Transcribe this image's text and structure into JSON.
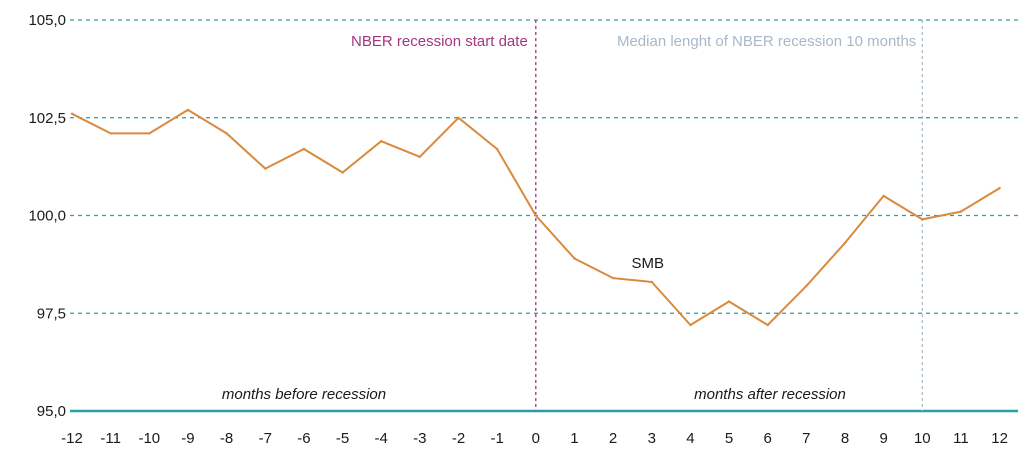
{
  "chart_data": {
    "type": "line",
    "x": [
      -12,
      -11,
      -10,
      -9,
      -8,
      -7,
      -6,
      -5,
      -4,
      -3,
      -2,
      -1,
      0,
      1,
      2,
      3,
      4,
      5,
      6,
      7,
      8,
      9,
      10,
      11,
      12
    ],
    "series": [
      {
        "name": "SMB",
        "values": [
          102.6,
          102.1,
          102.1,
          102.7,
          102.1,
          101.2,
          101.7,
          101.1,
          101.9,
          101.5,
          102.5,
          101.7,
          100.0,
          98.9,
          98.4,
          98.3,
          97.2,
          97.8,
          97.2,
          98.2,
          99.3,
          100.5,
          99.9,
          100.1,
          100.7
        ]
      }
    ],
    "ylim": [
      95,
      105
    ],
    "yticks": [
      {
        "value": 105,
        "label": "105,0"
      },
      {
        "value": 102.5,
        "label": "102,5"
      },
      {
        "value": 100,
        "label": "100,0"
      },
      {
        "value": 97.5,
        "label": "97,5"
      },
      {
        "value": 95,
        "label": "95,0"
      }
    ],
    "xticks": [
      "-12",
      "-11",
      "-10",
      "-9",
      "-8",
      "-7",
      "-6",
      "-5",
      "-4",
      "-3",
      "-2",
      "-1",
      "0",
      "1",
      "2",
      "3",
      "4",
      "5",
      "6",
      "7",
      "8",
      "9",
      "10",
      "11",
      "12"
    ],
    "vlines": [
      {
        "x": 0,
        "label": "NBER recession start date",
        "color": "#a3367e"
      },
      {
        "x": 10,
        "label": "Median lenght of NBER recession 10 months",
        "color": "#a9b8c8"
      }
    ],
    "region_labels": {
      "before": "months before recession",
      "after": "months after recession"
    },
    "series_label": {
      "text": "SMB",
      "x": 3
    },
    "colors": {
      "line": "#d98a3d",
      "grid": "#2a9fa8",
      "baseline": "#2a9fa8"
    },
    "grid": true
  }
}
